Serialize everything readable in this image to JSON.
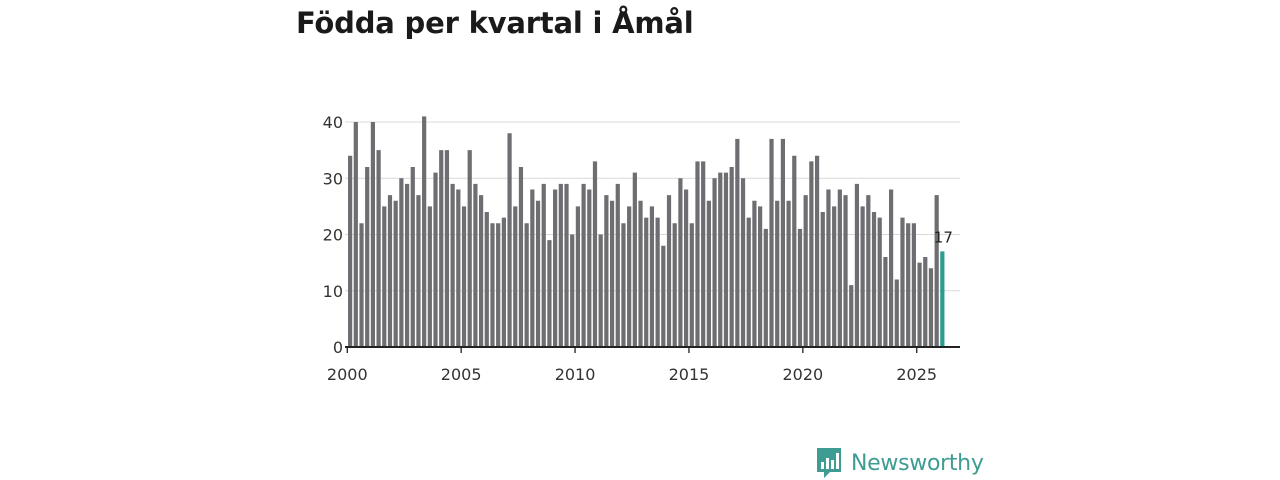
{
  "title": "Födda per kvartal i Åmål",
  "brand": {
    "name": "Newsworthy"
  },
  "colors": {
    "bar": "#6e6e72",
    "highlight": "#2a9d8f",
    "grid": "#d9d9d9",
    "axis": "#222222",
    "brand": "#3e9c92"
  },
  "chart_data": {
    "type": "bar",
    "title": "Födda per kvartal i Åmål",
    "xlabel": "",
    "ylabel": "",
    "ylim": [
      0,
      40
    ],
    "yticks": [
      0,
      10,
      20,
      30,
      40
    ],
    "xticks": [
      2000,
      2005,
      2010,
      2015,
      2020,
      2025
    ],
    "xlim": [
      1999.9,
      2026.9
    ],
    "grid": true,
    "start_year": 2000,
    "period": "quarter",
    "values": [
      34,
      40,
      22,
      32,
      40,
      35,
      25,
      27,
      26,
      30,
      29,
      32,
      27,
      41,
      25,
      31,
      35,
      35,
      29,
      28,
      25,
      35,
      29,
      27,
      24,
      22,
      22,
      23,
      38,
      25,
      32,
      22,
      28,
      26,
      29,
      19,
      28,
      29,
      29,
      20,
      25,
      29,
      28,
      33,
      20,
      27,
      26,
      29,
      22,
      25,
      31,
      26,
      23,
      25,
      23,
      18,
      27,
      22,
      30,
      28,
      22,
      33,
      33,
      26,
      30,
      31,
      31,
      32,
      37,
      30,
      23,
      26,
      25,
      21,
      37,
      26,
      37,
      26,
      34,
      21,
      27,
      33,
      34,
      24,
      28,
      25,
      28,
      27,
      11,
      29,
      25,
      27,
      24,
      23,
      16,
      28,
      12,
      23,
      22,
      22,
      15,
      16,
      14,
      27,
      17
    ],
    "highlight": {
      "index": 104,
      "label": "17"
    }
  }
}
